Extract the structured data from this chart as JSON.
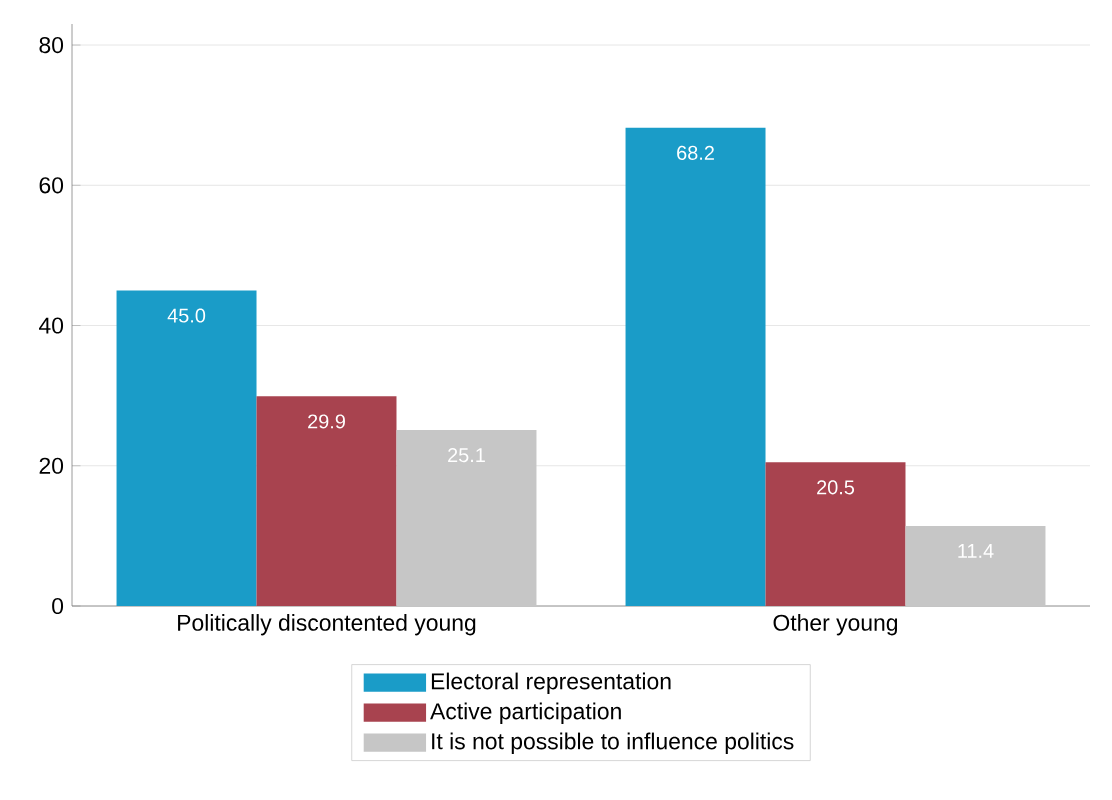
{
  "chart_data": {
    "type": "bar",
    "categories": [
      "Politically discontented young",
      "Other young"
    ],
    "series": [
      {
        "name": "Electoral representation",
        "color": "#1a9cc8",
        "values": [
          45.0,
          68.2
        ],
        "value_labels": [
          "45.0",
          "68.2"
        ]
      },
      {
        "name": "Active participation",
        "color": "#a8434f",
        "values": [
          29.9,
          20.5
        ],
        "value_labels": [
          "29.9",
          "20.5"
        ]
      },
      {
        "name": "It is not possible to influence politics",
        "color": "#c6c6c6",
        "values": [
          25.1,
          11.4
        ],
        "value_labels": [
          "25.1",
          "11.4"
        ]
      }
    ],
    "ylim": [
      0,
      83
    ],
    "yticks": [
      0,
      20,
      40,
      60,
      80
    ],
    "grid": "y",
    "legend": "bottom"
  }
}
